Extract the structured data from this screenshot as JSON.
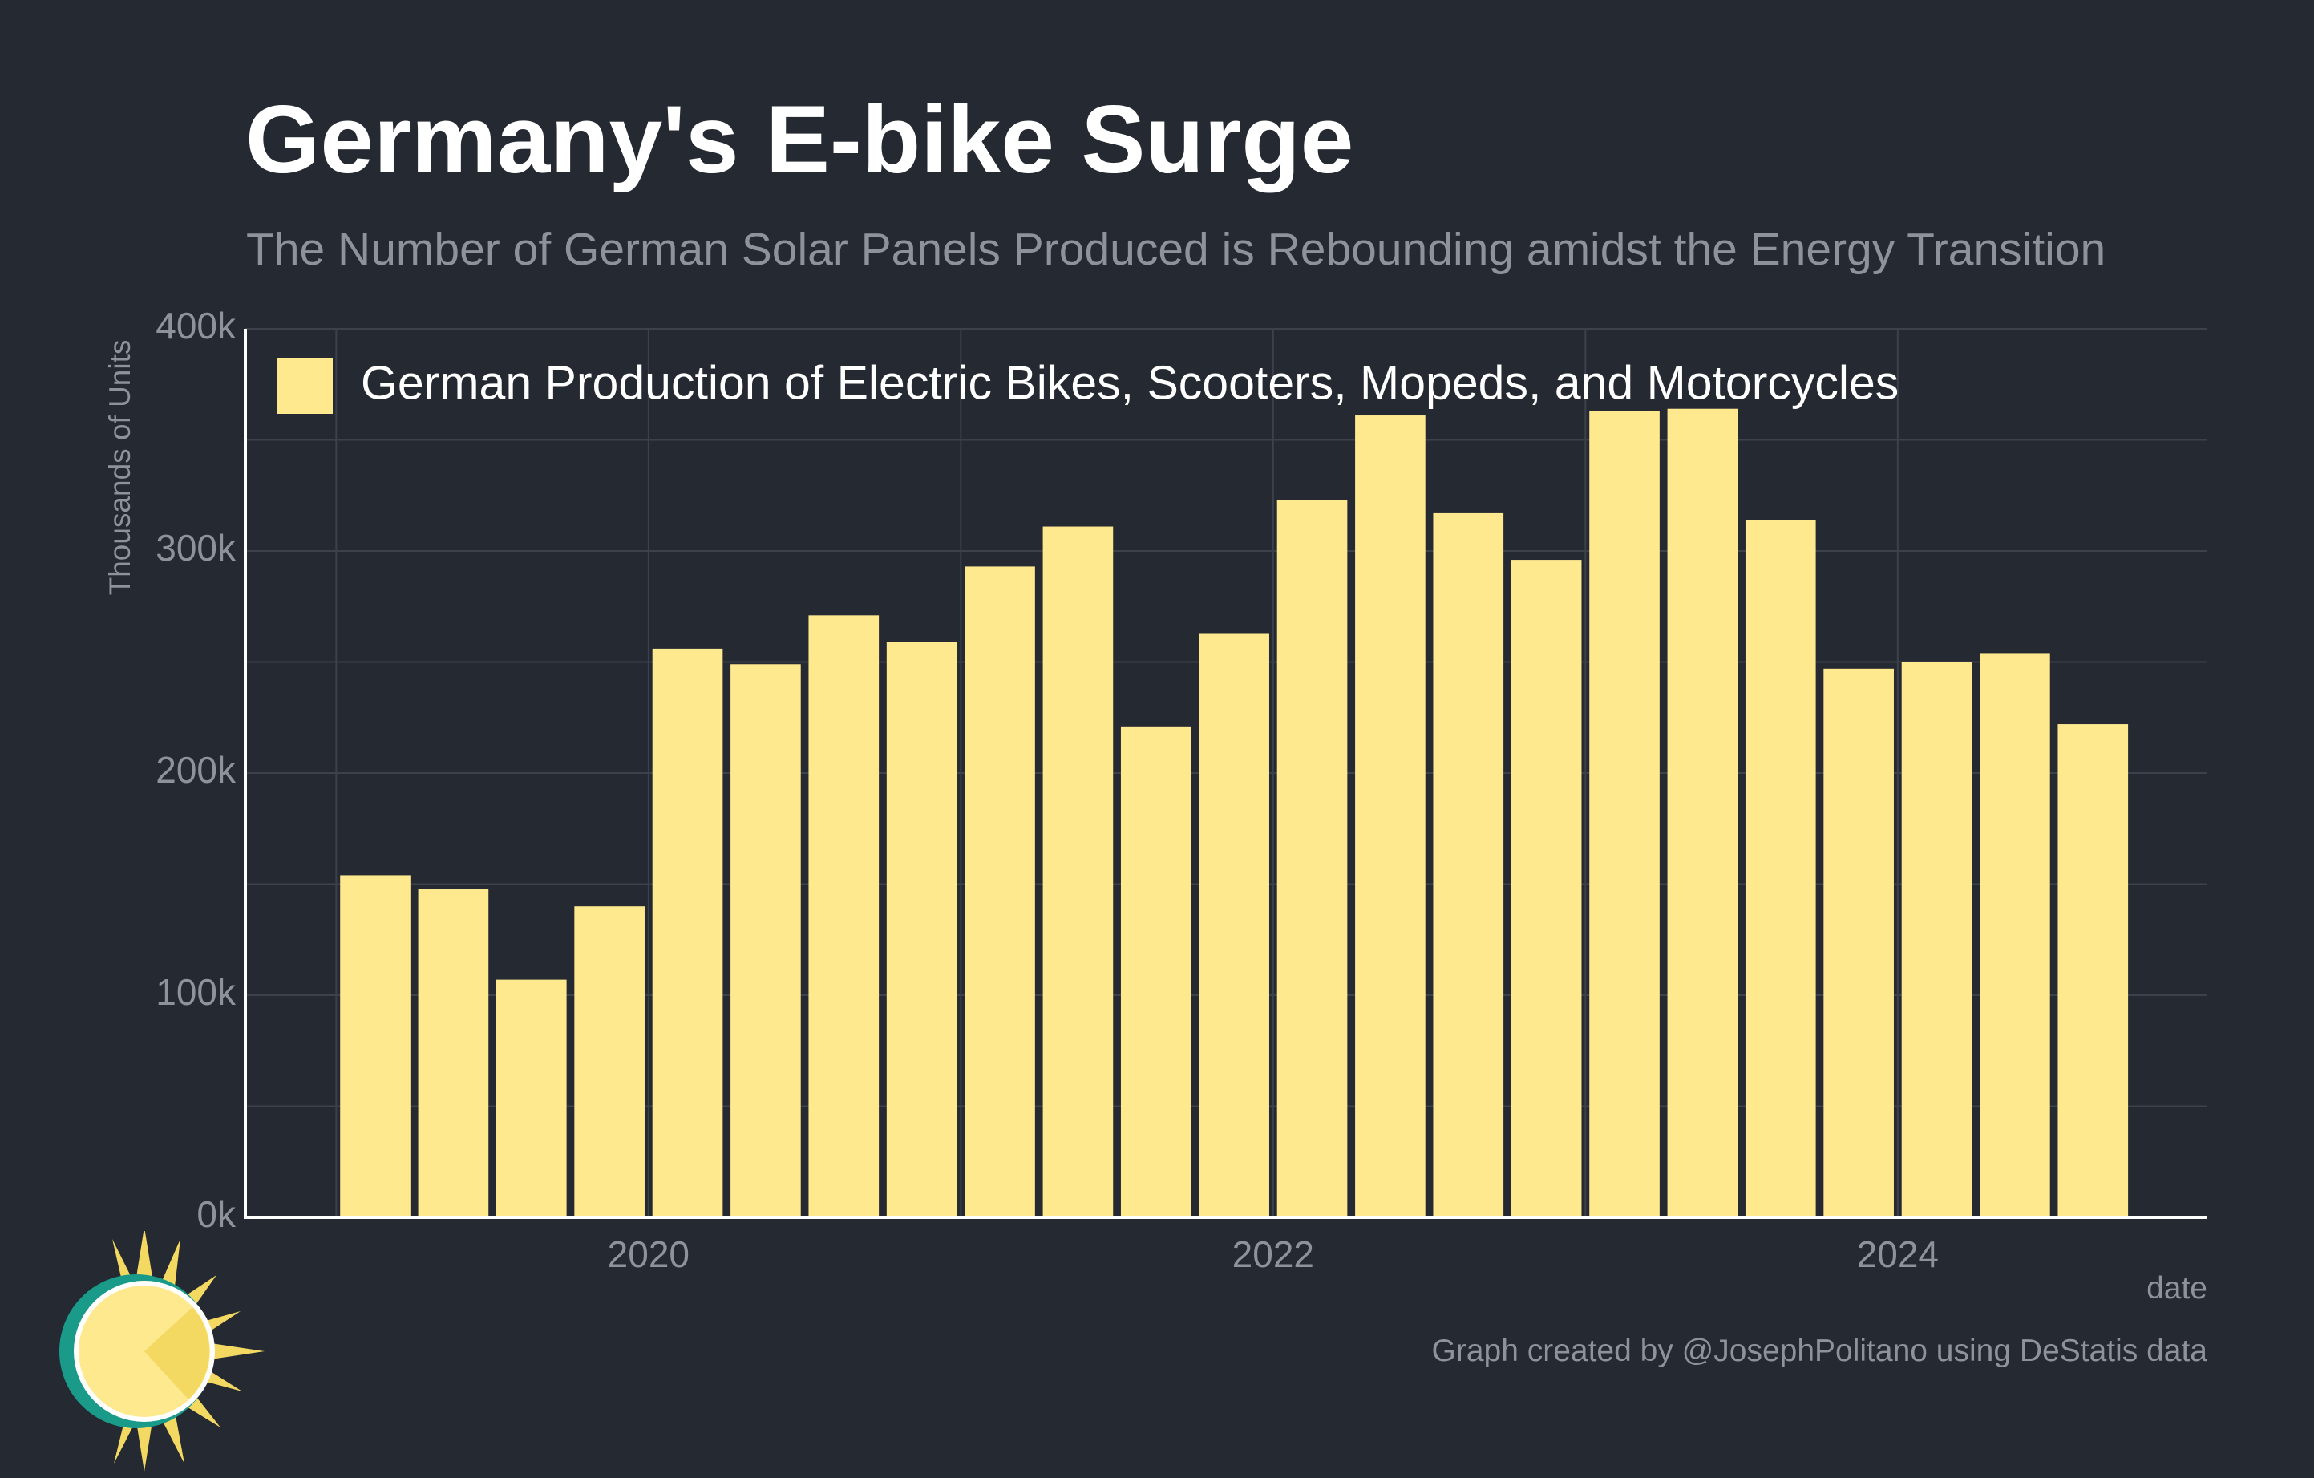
{
  "title": "Germany's E-bike Surge",
  "subtitle": "The Number of German Solar Panels Produced is Rebounding amidst the Energy Transition",
  "caption": "Graph created by @JosephPolitano using DeStatis data",
  "colors": {
    "background": "#252932",
    "bar": "#fee98f",
    "grid": "#3c414b",
    "axis": "#ffffff",
    "muted": "#8e939b"
  },
  "logo_icon": "sun-logo-icon",
  "chart_data": {
    "type": "bar",
    "xlabel": "date",
    "ylabel": "Thousands of Units",
    "y_ticks": [
      "0k",
      "100k",
      "200k",
      "300k",
      "400k"
    ],
    "x_ticks": [
      "2020",
      "2022",
      "2024"
    ],
    "ylim": [
      0,
      400
    ],
    "grid": true,
    "legend_position": "top-left",
    "series": [
      {
        "name": "German Production of Electric Bikes, Scooters, Mopeds, and Motorcycles",
        "color": "#fee98f",
        "x": [
          "2019-Q1",
          "2019-Q2",
          "2019-Q3",
          "2019-Q4",
          "2020-Q1",
          "2020-Q2",
          "2020-Q3",
          "2020-Q4",
          "2021-Q1",
          "2021-Q2",
          "2021-Q3",
          "2021-Q4",
          "2022-Q1",
          "2022-Q2",
          "2022-Q3",
          "2022-Q4",
          "2023-Q1",
          "2023-Q2",
          "2023-Q3",
          "2023-Q4",
          "2024-Q1",
          "2024-Q2",
          "2024-Q3"
        ],
        "values": [
          154,
          148,
          107,
          140,
          256,
          249,
          271,
          259,
          293,
          311,
          221,
          263,
          323,
          361,
          317,
          296,
          363,
          364,
          314,
          247,
          250,
          254,
          222
        ]
      }
    ]
  }
}
